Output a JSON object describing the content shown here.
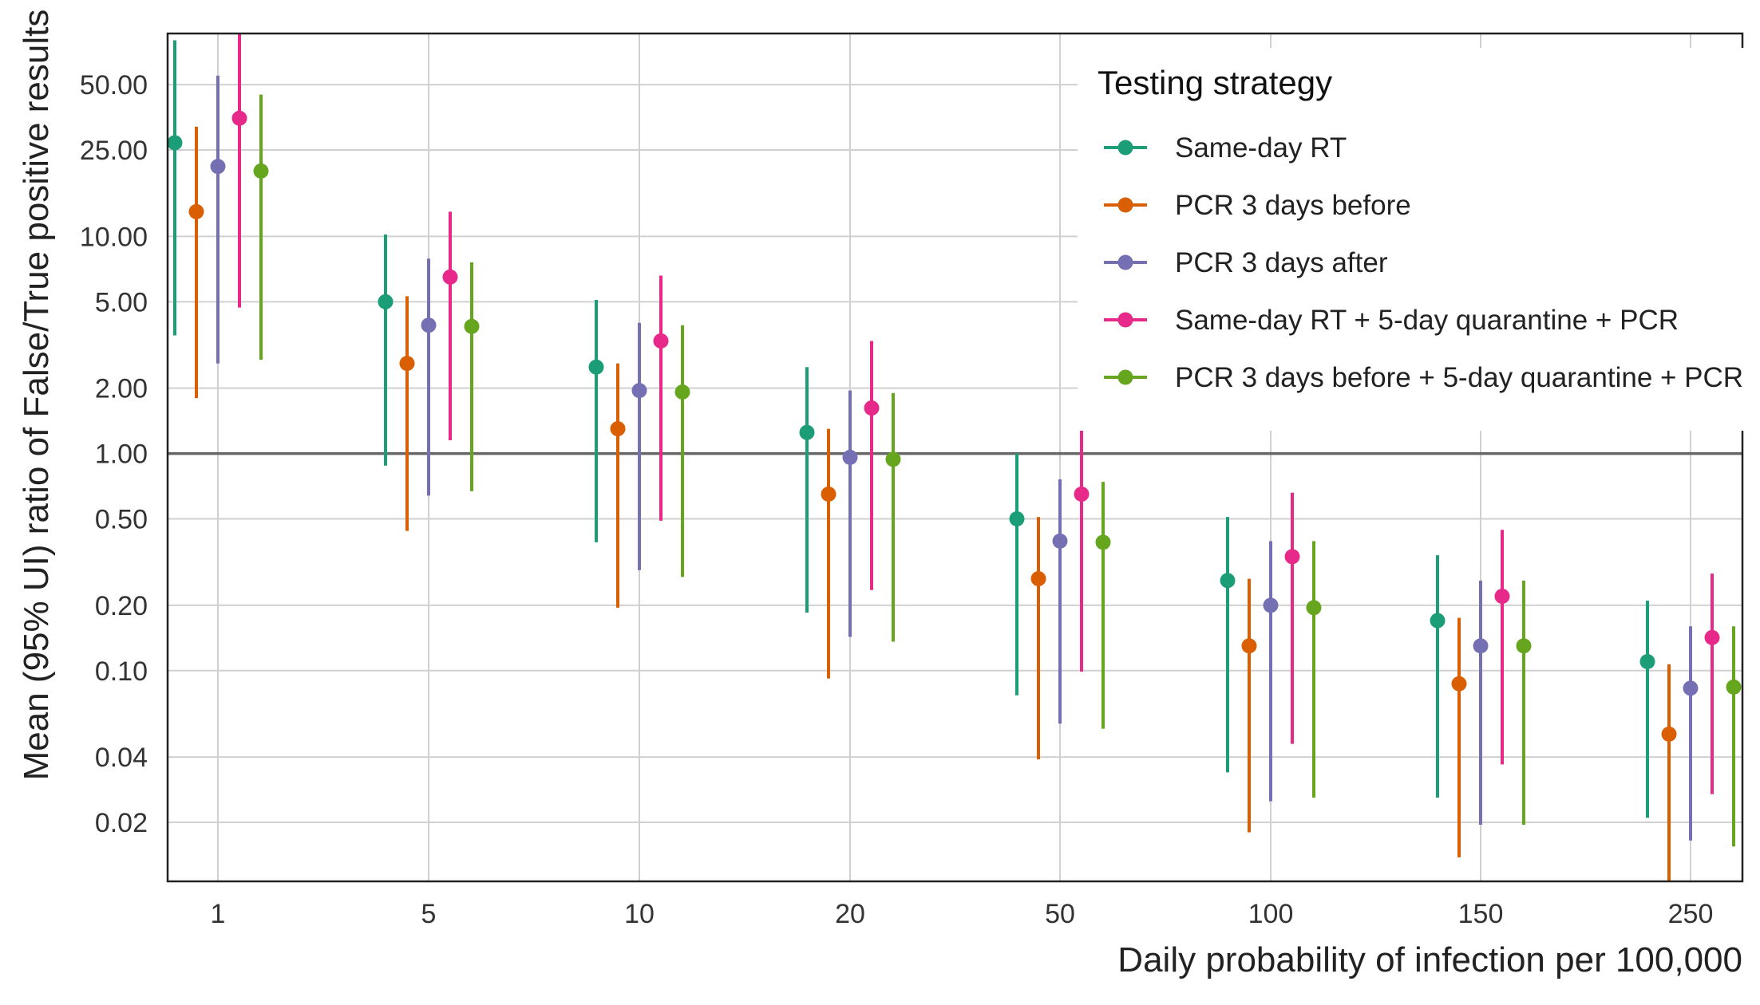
{
  "chart_data": {
    "type": "scatter",
    "subtype": "point-range",
    "ylabel": "Mean (95% UI) ratio of False/True positive results",
    "xlabel": "Daily probability of infection per 100,000",
    "yscale": "log",
    "ylim": [
      0.0107,
      86
    ],
    "y_ticks": [
      0.02,
      0.04,
      0.1,
      0.2,
      0.5,
      1.0,
      2.0,
      5.0,
      10.0,
      25.0,
      50.0
    ],
    "y_tick_labels": [
      "0.02",
      "0.04",
      "0.10",
      "0.20",
      "0.50",
      "1.00",
      "2.00",
      "5.00",
      "10.00",
      "25.00",
      "50.00"
    ],
    "reference_line": 1.0,
    "grid": true,
    "categories": [
      "1",
      "5",
      "10",
      "20",
      "50",
      "100",
      "150",
      "250"
    ],
    "legend": {
      "title": "Testing strategy",
      "position": "top-right"
    },
    "series": [
      {
        "name": "Same-day RT",
        "color": "#1b9e77",
        "mean": [
          27.0,
          5.0,
          2.5,
          1.25,
          0.5,
          0.26,
          0.17,
          0.11
        ],
        "lower": [
          3.5,
          0.88,
          0.39,
          0.185,
          0.077,
          0.034,
          0.026,
          0.021
        ],
        "upper": [
          80.0,
          10.2,
          5.1,
          2.5,
          1.0,
          0.51,
          0.34,
          0.21
        ]
      },
      {
        "name": "PCR 3 days before",
        "color": "#d95f02",
        "mean": [
          13.0,
          2.6,
          1.3,
          0.65,
          0.265,
          0.13,
          0.087,
          0.051
        ],
        "lower": [
          1.8,
          0.44,
          0.195,
          0.092,
          0.039,
          0.018,
          0.0138,
          0.0107
        ],
        "upper": [
          32.0,
          5.3,
          2.6,
          1.3,
          0.51,
          0.265,
          0.175,
          0.107
        ]
      },
      {
        "name": "PCR 3 days after",
        "color": "#7570b3",
        "mean": [
          21.0,
          3.9,
          1.95,
          0.96,
          0.395,
          0.2,
          0.13,
          0.083
        ],
        "lower": [
          2.6,
          0.64,
          0.29,
          0.143,
          0.057,
          0.025,
          0.0195,
          0.0165
        ],
        "upper": [
          55.0,
          7.9,
          4.0,
          1.95,
          0.76,
          0.395,
          0.26,
          0.16
        ]
      },
      {
        "name": "Same-day RT + 5-day quarantine + PCR",
        "color": "#e7298a",
        "mean": [
          35.0,
          6.5,
          3.3,
          1.62,
          0.65,
          0.335,
          0.22,
          0.142
        ],
        "lower": [
          4.7,
          1.15,
          0.49,
          0.235,
          0.099,
          0.046,
          0.037,
          0.027
        ],
        "upper": [
          86.0,
          13.0,
          6.6,
          3.3,
          1.3,
          0.66,
          0.445,
          0.28
        ]
      },
      {
        "name": "PCR 3 days before + 5-day quarantine + PCR",
        "color": "#66a61e",
        "mean": [
          20.0,
          3.85,
          1.92,
          0.94,
          0.39,
          0.195,
          0.13,
          0.084
        ],
        "lower": [
          2.7,
          0.67,
          0.27,
          0.136,
          0.054,
          0.026,
          0.0195,
          0.0155
        ],
        "upper": [
          45.0,
          7.6,
          3.9,
          1.9,
          0.74,
          0.395,
          0.26,
          0.16
        ]
      }
    ]
  }
}
